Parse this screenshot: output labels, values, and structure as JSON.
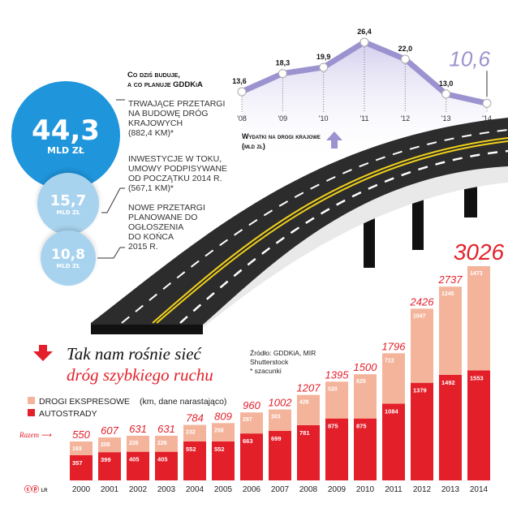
{
  "intro": {
    "heading_line1": "Co dziś buduje,",
    "heading_line2": "a co planuje GDDKiA",
    "items": [
      {
        "value": "44,3",
        "unit": "MLD ZŁ",
        "lines": [
          "TRWAJĄCE PRZETARGI",
          "NA BUDOWĘ DRÓG",
          "KRAJOWYCH",
          "(882,4 KM)*"
        ]
      },
      {
        "value": "15,7",
        "unit": "MLD ZŁ",
        "lines": [
          "INWESTYCJE W TOKU,",
          "UMOWY PODPISYWANE",
          "OD POCZĄTKU 2014 R.",
          "(567,1 KM)*"
        ]
      },
      {
        "value": "10,8",
        "unit": "MLD ZŁ",
        "lines": [
          "NOWE PRZETARGI",
          "PLANOWANE DO",
          "OGŁOSZENIA",
          "DO KOŃCA",
          "2015 R."
        ]
      }
    ],
    "colors": {
      "big": "#1f95dc",
      "small": "#a8d3ef"
    }
  },
  "chart_data": [
    {
      "type": "line",
      "title": "Wydatki na drogi krajowe (mld zł)",
      "categories": [
        "'08",
        "'09",
        "'10",
        "'11",
        "'12",
        "'13",
        "'14"
      ],
      "values": [
        13.6,
        18.3,
        19.9,
        26.4,
        22.0,
        13.0,
        10.6
      ],
      "labels": [
        "13,6",
        "18,3",
        "19,9",
        "26,4",
        "22,0",
        "13,0",
        "10,6"
      ],
      "color": "#9b93cf",
      "highlight_last": true
    },
    {
      "type": "bar",
      "stacked": true,
      "title_line1": "Tak nam rośnie sieć",
      "title_line2": "dróg szybkiego ruchu",
      "note": "(km, dane narastająco)",
      "total_label": "Razem",
      "source_lines": [
        "Źródło: GDDKiA, MIR",
        "Shutterstock",
        "* szacunki"
      ],
      "categories": [
        "2000",
        "2001",
        "2002",
        "2003",
        "2004",
        "2005",
        "2006",
        "2007",
        "2008",
        "2009",
        "2010",
        "2011",
        "2012",
        "2013",
        "2014"
      ],
      "series": [
        {
          "name": "AUTOSTRADY",
          "color": "#e3202a",
          "values": [
            357,
            399,
            405,
            405,
            552,
            552,
            663,
            699,
            781,
            875,
            875,
            1084,
            1379,
            1492,
            1553
          ]
        },
        {
          "name": "DROGI EKSPRESOWE",
          "color": "#f4b49c",
          "values": [
            193,
            208,
            226,
            226,
            232,
            258,
            297,
            303,
            426,
            520,
            625,
            712,
            1047,
            1245,
            1473
          ]
        }
      ],
      "totals": [
        550,
        607,
        631,
        631,
        784,
        809,
        960,
        1002,
        1207,
        1395,
        1500,
        1796,
        2426,
        2737,
        3026
      ],
      "legend": "top-left"
    }
  ],
  "footer": {
    "credit": "LR"
  }
}
